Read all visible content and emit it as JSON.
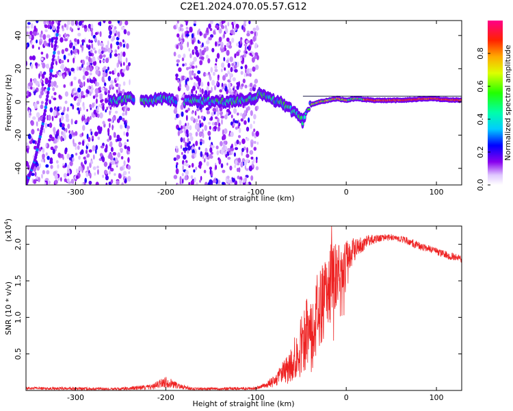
{
  "title": "C2E1.2024.070.05.57.G12",
  "chart_data": [
    {
      "type": "heatmap",
      "name": "spectrogram",
      "xlabel": "Height of straight line (km)",
      "ylabel": "Frequency (Hz)",
      "xlim": [
        -355,
        128
      ],
      "ylim": [
        -50,
        49
      ],
      "xticks": [
        -300,
        -200,
        -100,
        0,
        100
      ],
      "yticks": [
        -40,
        -20,
        0,
        20,
        40
      ],
      "colorbar": {
        "label": "Normalized spectral amplitude",
        "range": [
          0.0,
          1.0
        ],
        "ticks": [
          "0.0",
          "0.2",
          "0.4",
          "0.6",
          "0.8"
        ],
        "tick_values": [
          0.0,
          0.2,
          0.4,
          0.6,
          0.8
        ]
      },
      "features": {
        "noise_bands_km": [
          [
            -355,
            -240
          ],
          [
            -190,
            -98
          ]
        ],
        "occultation_track_km": [
          -355,
          128
        ],
        "direct_signal_ridge": {
          "x": [
            -260,
            -240,
            -220,
            -200,
            -185,
            -160,
            -140,
            -120,
            -105,
            -95,
            -85,
            -75,
            -65,
            -55,
            -48,
            -40,
            -30,
            -20,
            -10,
            0,
            10,
            30,
            60,
            90,
            128
          ],
          "y": [
            1,
            2,
            1,
            2,
            0,
            1,
            0,
            1,
            2,
            5,
            3,
            0,
            -3,
            -7,
            -12,
            -2,
            0,
            1,
            2,
            1,
            2,
            1,
            1,
            2,
            1
          ]
        },
        "steep_line": {
          "x": [
            -355,
            -345,
            -335,
            -325,
            -318
          ],
          "y": [
            -50,
            -35,
            -10,
            25,
            49
          ]
        }
      }
    },
    {
      "type": "line",
      "name": "snr",
      "xlabel": "Height of straight line (km)",
      "ylabel": "SNR (10 * v/v)",
      "yscale_label": "(x10",
      "yscale_exp": "4",
      "yscale_close": ")",
      "xlim": [
        -355,
        128
      ],
      "ylim": [
        0,
        2.25
      ],
      "xticks": [
        -300,
        -200,
        -100,
        0,
        100
      ],
      "yticks": [
        0.5,
        1.0,
        1.5,
        2.0
      ],
      "ytick_labels": [
        "0.5",
        "1.0",
        "1.5",
        "2.0"
      ],
      "color": "#ee2222",
      "envelope": {
        "x": [
          -355,
          -250,
          -215,
          -200,
          -185,
          -170,
          -100,
          -80,
          -65,
          -55,
          -45,
          -35,
          -25,
          -18,
          -12,
          -5,
          0,
          5,
          15,
          25,
          35,
          50,
          65,
          80,
          100,
          115,
          128
        ],
        "y": [
          0.03,
          0.02,
          0.05,
          0.12,
          0.06,
          0.02,
          0.03,
          0.12,
          0.28,
          0.45,
          0.78,
          0.98,
          1.25,
          1.45,
          1.55,
          1.7,
          1.8,
          1.88,
          1.98,
          2.05,
          2.08,
          2.1,
          2.06,
          1.98,
          1.9,
          1.84,
          1.8
        ],
        "amp": [
          0.02,
          0.02,
          0.04,
          0.08,
          0.04,
          0.02,
          0.02,
          0.08,
          0.22,
          0.35,
          0.5,
          0.55,
          0.55,
          0.55,
          0.45,
          0.4,
          0.3,
          0.2,
          0.12,
          0.08,
          0.05,
          0.04,
          0.05,
          0.06,
          0.05,
          0.05,
          0.05
        ]
      }
    }
  ]
}
